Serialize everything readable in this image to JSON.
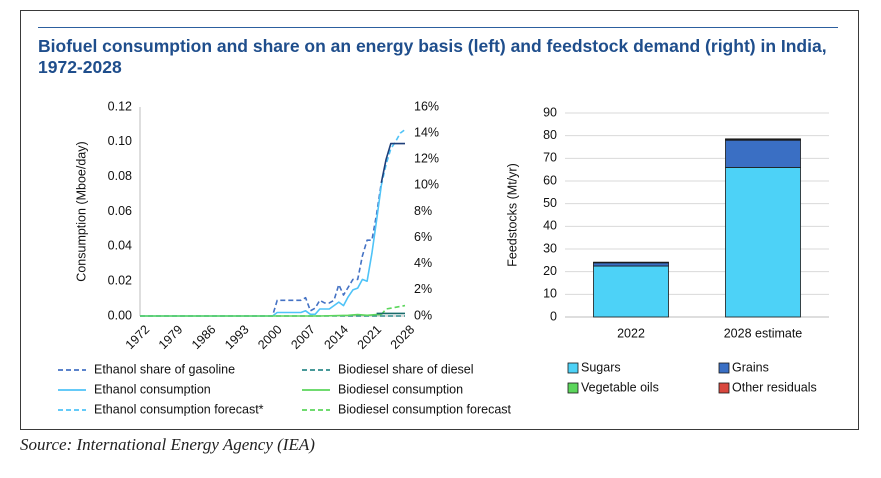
{
  "title": "Biofuel consumption and share on an energy basis (left) and feedstock demand (right) in India, 1972-2028",
  "source": "Source: International Energy Agency (IEA)",
  "chart_data": [
    {
      "type": "line",
      "ylabel": "Consumption (Mboe/day)",
      "y_ticks": [
        "0.00",
        "0.02",
        "0.04",
        "0.06",
        "0.08",
        "0.10",
        "0.12"
      ],
      "ylim": [
        0,
        0.12
      ],
      "y2_ticks": [
        "0%",
        "2%",
        "4%",
        "6%",
        "8%",
        "10%",
        "12%",
        "14%",
        "16%"
      ],
      "y2lim": [
        0,
        16
      ],
      "x_ticks": [
        "1972",
        "1979",
        "1986",
        "1993",
        "2000",
        "2007",
        "2014",
        "2021",
        "2028"
      ],
      "xlim": [
        1972,
        2028
      ],
      "grid": false,
      "legend_position": "bottom",
      "series": [
        {
          "name": "Ethanol share of gasoline",
          "axis": "right",
          "style": "dashed",
          "color": "#4472c4",
          "x": [
            1972,
            1999,
            2000,
            2001,
            2004,
            2005,
            2006,
            2007,
            2008,
            2009,
            2010,
            2011,
            2012,
            2013,
            2014,
            2015,
            2016,
            2017,
            2018,
            2019,
            2020,
            2021,
            2022,
            2023
          ],
          "y": [
            0,
            0,
            0,
            1.2,
            1.2,
            1.2,
            1.2,
            1.4,
            0.4,
            0.6,
            1.2,
            1.0,
            1.0,
            1.2,
            2.4,
            1.6,
            2.2,
            2.8,
            2.8,
            4.6,
            5.8,
            5.8,
            7.8,
            10.2
          ]
        },
        {
          "name": "Biodiesel share of diesel",
          "axis": "right",
          "style": "dashed",
          "color": "#2e8b8b",
          "x": [
            1972,
            2012,
            2028
          ],
          "y": [
            0,
            0,
            0
          ]
        },
        {
          "name": "Ethanol consumption",
          "axis": "left",
          "style": "solid",
          "color": "#4fc3f7",
          "x": [
            1972,
            1999,
            2000,
            2001,
            2005,
            2006,
            2007,
            2008,
            2009,
            2010,
            2011,
            2012,
            2013,
            2014,
            2015,
            2016,
            2017,
            2018,
            2019,
            2020,
            2021,
            2022,
            2023
          ],
          "y": [
            0,
            0,
            0,
            0.002,
            0.002,
            0.002,
            0.003,
            0.001,
            0.001,
            0.004,
            0.004,
            0.004,
            0.006,
            0.008,
            0.006,
            0.011,
            0.015,
            0.016,
            0.021,
            0.02,
            0.036,
            0.055,
            0.075
          ]
        },
        {
          "name": "Biodiesel consumption",
          "axis": "left",
          "style": "solid",
          "color": "#5cd65c",
          "x": [
            1972,
            2010,
            2016,
            2018,
            2020,
            2022,
            2023
          ],
          "y": [
            0,
            0,
            0.0004,
            0.0008,
            0.0004,
            0.0008,
            0.0008
          ]
        },
        {
          "name": "Ethanol consumption forecast*",
          "axis": "left",
          "style": "dashed",
          "color": "#4fc3f7",
          "x": [
            2023,
            2024,
            2025,
            2026,
            2027,
            2028
          ],
          "y": [
            0.075,
            0.087,
            0.096,
            0.1,
            0.105,
            0.107
          ]
        },
        {
          "name": "Biodiesel consumption forecast",
          "axis": "left",
          "style": "dashed",
          "color": "#5cd65c",
          "x": [
            2023,
            2024,
            2025,
            2026,
            2027,
            2028
          ],
          "y": [
            0.0008,
            0.004,
            0.0045,
            0.005,
            0.0055,
            0.006
          ]
        }
      ],
      "extra_series": [
        {
          "axis": "right",
          "style": "solid",
          "color": "#1f3f7a",
          "x": [
            2023,
            2024,
            2025,
            2026,
            2027,
            2028
          ],
          "y": [
            10.2,
            12.0,
            13.2,
            13.2,
            13.2,
            13.2
          ]
        },
        {
          "axis": "right",
          "style": "solid",
          "color": "#1a6b6b",
          "x": [
            2022,
            2028
          ],
          "y": [
            0.2,
            0.2
          ]
        }
      ]
    },
    {
      "type": "bar",
      "stacked": true,
      "ylabel": "Feedstocks (Mt/yr)",
      "categories": [
        "2022",
        "2028 estimate"
      ],
      "ylim": [
        0,
        90
      ],
      "y_ticks": [
        "0",
        "10",
        "20",
        "30",
        "40",
        "50",
        "60",
        "70",
        "80",
        "90"
      ],
      "legend_position": "bottom",
      "series": [
        {
          "name": "Sugars",
          "color": "#4dd2f7",
          "values": [
            22.5,
            66
          ]
        },
        {
          "name": "Grains",
          "color": "#3a6fc4",
          "values": [
            1.5,
            12
          ]
        },
        {
          "name": "Vegetable oils",
          "color": "#5cd65c",
          "values": [
            0.2,
            0.5
          ]
        },
        {
          "name": "Other residuals",
          "color": "#d9473e",
          "values": [
            0,
            0.1
          ]
        }
      ]
    }
  ]
}
